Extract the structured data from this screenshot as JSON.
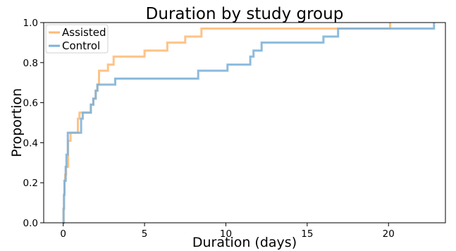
{
  "chart_data": {
    "type": "line",
    "step": true,
    "title": "Duration by study group",
    "xlabel": "Duration (days)",
    "ylabel": "Proportion",
    "xlim": [
      -1.2,
      23.5
    ],
    "ylim": [
      0.0,
      1.0
    ],
    "xticks": [
      0,
      5,
      10,
      15,
      20
    ],
    "yticks": [
      0.0,
      0.2,
      0.4,
      0.6,
      0.8,
      1.0
    ],
    "xtick_labels": [
      "0",
      "5",
      "10",
      "15",
      "20"
    ],
    "ytick_labels": [
      "0.0",
      "0.2",
      "0.4",
      "0.6",
      "0.8",
      "1.0"
    ],
    "grid": false,
    "legend_position": "top-left",
    "series": [
      {
        "name": "Assisted",
        "color": "#ffbb78",
        "x": [
          0.0,
          0.02,
          0.05,
          0.08,
          0.12,
          0.18,
          0.3,
          0.45,
          0.9,
          1.0,
          1.25,
          1.7,
          1.85,
          2.0,
          2.1,
          2.2,
          2.75,
          3.1,
          5.0,
          6.4,
          7.5,
          8.5,
          16.9,
          20.1
        ],
        "y": [
          0.0,
          0.07,
          0.14,
          0.21,
          0.24,
          0.28,
          0.41,
          0.45,
          0.52,
          0.55,
          0.55,
          0.59,
          0.62,
          0.66,
          0.69,
          0.76,
          0.79,
          0.83,
          0.86,
          0.9,
          0.93,
          0.97,
          0.97,
          1.0
        ]
      },
      {
        "name": "Control",
        "color": "#7eb2d8",
        "x": [
          0.0,
          0.02,
          0.05,
          0.08,
          0.15,
          0.2,
          0.28,
          1.1,
          1.2,
          1.7,
          1.85,
          2.0,
          2.1,
          2.15,
          3.2,
          8.3,
          10.1,
          11.5,
          11.7,
          12.2,
          16.0,
          16.9,
          22.8
        ],
        "y": [
          0.0,
          0.07,
          0.14,
          0.21,
          0.28,
          0.34,
          0.45,
          0.52,
          0.55,
          0.59,
          0.62,
          0.66,
          0.69,
          0.69,
          0.72,
          0.76,
          0.79,
          0.83,
          0.86,
          0.9,
          0.93,
          0.97,
          1.0
        ]
      }
    ]
  }
}
